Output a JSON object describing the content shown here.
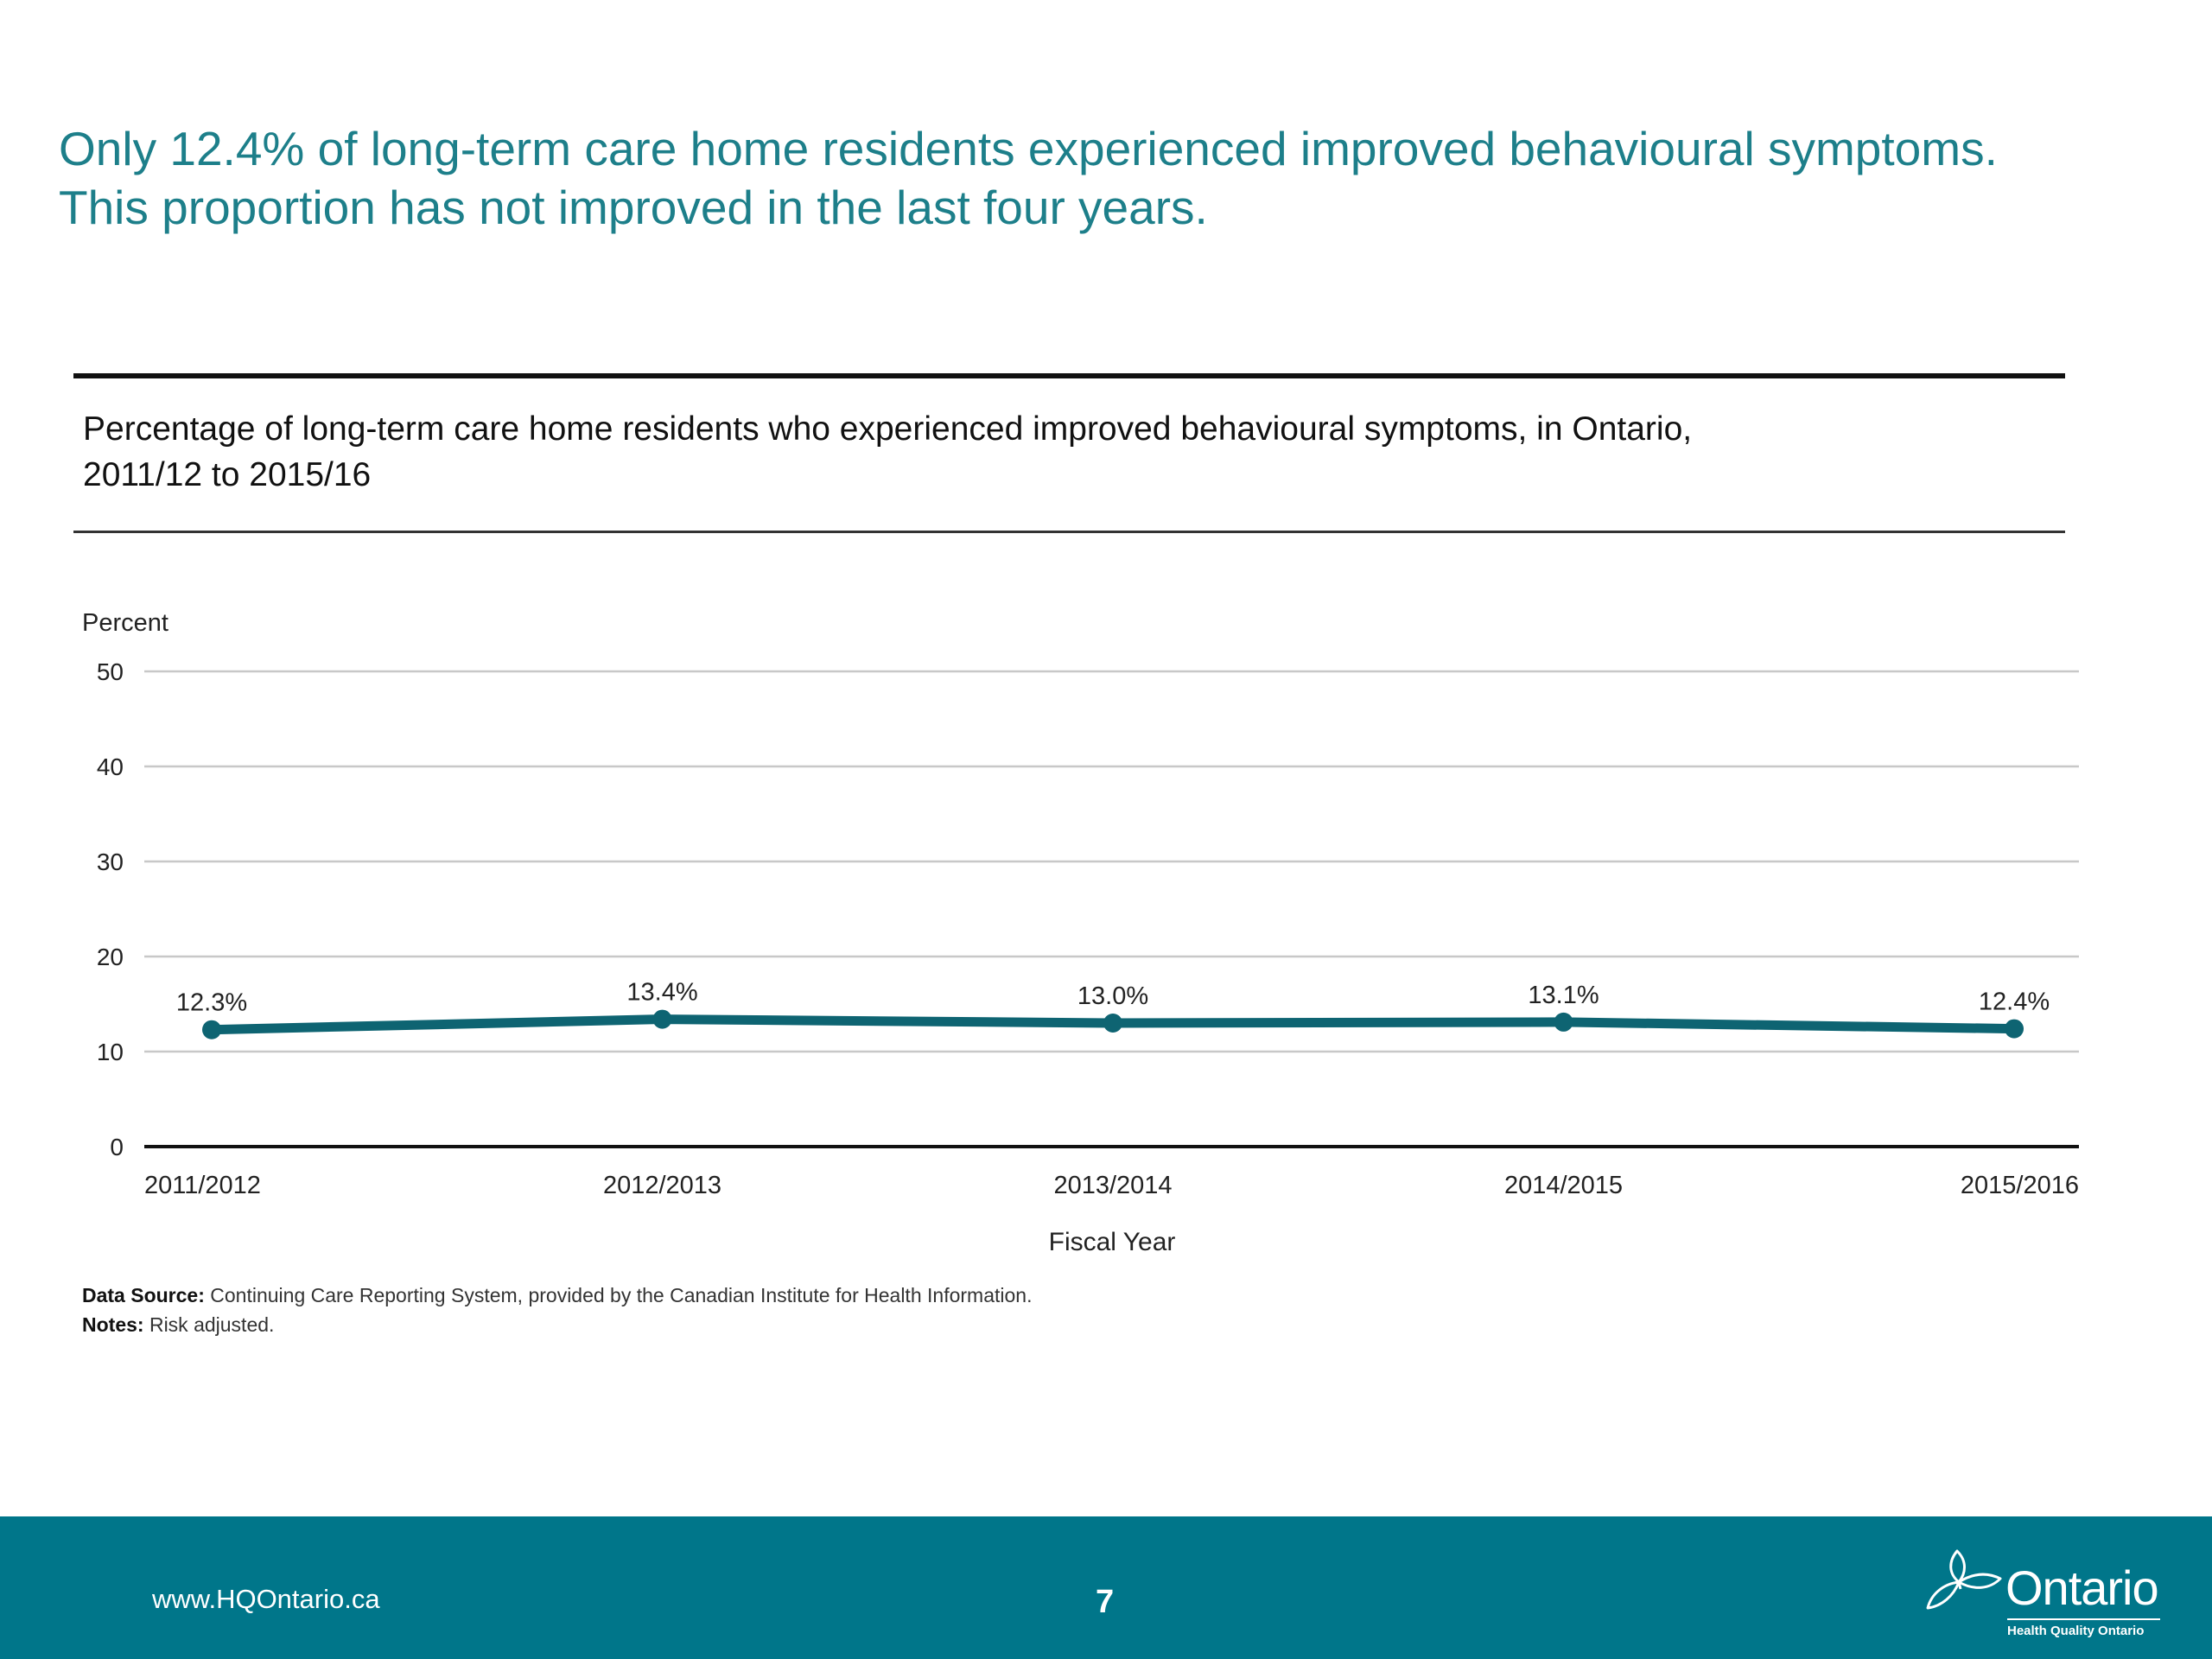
{
  "headline": {
    "line1": "Only 12.4% of long-term care home residents experienced improved behavioural symptoms.",
    "line2": "This proportion has not improved in the last four years."
  },
  "subtitle": {
    "line1": "Percentage of long-term care home residents who experienced improved behavioural symptoms, in Ontario,",
    "line2": "2011/12 to 2015/16"
  },
  "chart_data": {
    "type": "line",
    "ylabel": "Percent",
    "xlabel": "Fiscal Year",
    "categories": [
      "2011/2012",
      "2012/2013",
      "2013/2014",
      "2014/2015",
      "2015/2016"
    ],
    "values": [
      12.3,
      13.4,
      13.0,
      13.1,
      12.4
    ],
    "data_labels": [
      "12.3%",
      "13.4%",
      "13.0%",
      "13.1%",
      "12.4%"
    ],
    "ylim": [
      0,
      50
    ],
    "yticks": [
      "0",
      "10",
      "20",
      "30",
      "40",
      "50"
    ],
    "grid": true,
    "colors": {
      "line": "#0e6472",
      "grid": "#c8c8c8",
      "axis": "#111111"
    }
  },
  "source": {
    "label": "Data Source:",
    "text": "Continuing Care Reporting System, provided by the Canadian Institute for Health Information.",
    "notes_label": "Notes:",
    "notes_text": "Risk adjusted."
  },
  "footer": {
    "url": "www.HQOntario.ca",
    "page": "7",
    "logo_word": "Ontario",
    "logo_sub": "Health Quality Ontario",
    "logo_icon": "trillium-icon"
  }
}
